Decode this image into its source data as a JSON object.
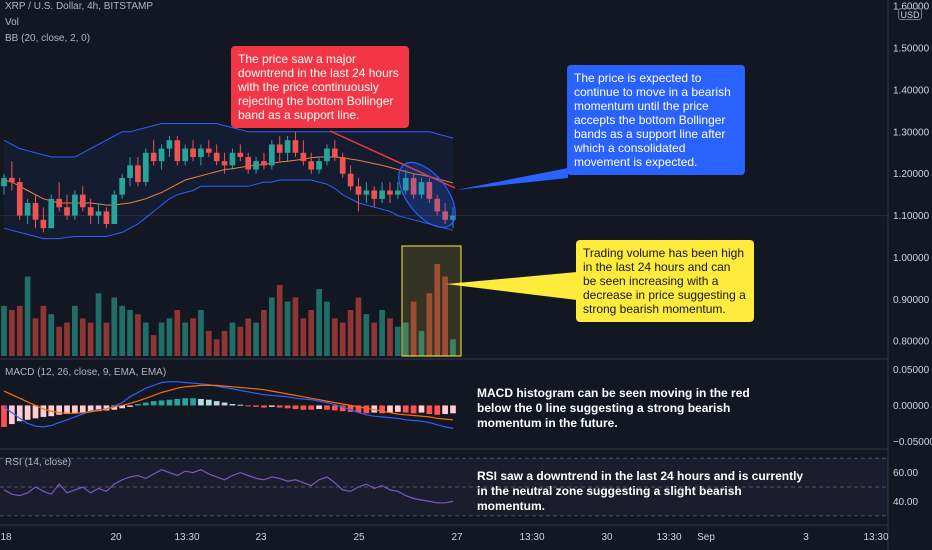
{
  "legend": {
    "symbol": "XRP / U.S. Dollar, 4h, BITSTAMP",
    "volume": "Vol",
    "bollinger": "BB (20, close, 2, 0)",
    "macd": "MACD (12, 26, close, 9, EMA, EMA)",
    "rsi": "RSI (14, close)"
  },
  "currency_badge": "USD",
  "annotations": {
    "downtrend": "The price saw a major downtrend in the last 24 hours with the price continuously rejecting the bottom Bollinger band as a support line.",
    "expectation": "The price is expected to continue to move in a bearish momentum until the price accepts the bottom Bollinger bands as a support line after which a consolidated movement is expected.",
    "volume": "Trading volume has been high in the last 24 hours and can be seen increasing with a decrease in price suggesting a strong bearish momentum.",
    "macd": "MACD histogram can be seen moving in the red below the 0 line suggesting a strong bearish momentum in the future.",
    "rsi": "RSI saw a downtrend in the last 24 hours and is currently in the neutral zone suggesting a slight bearish momentum."
  },
  "colors": {
    "background": "#131722",
    "grid": "#2a2e39",
    "bull": "#26a69a",
    "bear": "#ef5350",
    "vol_bull": "#1f6f68",
    "vol_bear": "#8f3533",
    "bb_band": "#2962ff",
    "bb_basis": "#f57c3a",
    "macd_line": "#2962ff",
    "signal_line": "#ff6d00",
    "rsi_line": "#7e57c2",
    "red_callout": "#f23645",
    "blue_callout": "#2962ff",
    "yellow_callout": "#ffeb3b"
  },
  "chart_data": {
    "type": "candlestick",
    "title": "XRP / U.S. Dollar, 4h, BITSTAMP",
    "x_ticks": [
      "18",
      "20",
      "13:30",
      "23",
      "25",
      "27",
      "13:30",
      "30",
      "13:30",
      "Sep",
      "3",
      "13:30"
    ],
    "price_axis": {
      "ticks": [
        "1.60000",
        "1.50000",
        "1.40000",
        "1.30000",
        "1.20000",
        "1.10000",
        "1.00000",
        "0.90000",
        "0.80000"
      ],
      "ylim": [
        0.76,
        1.61
      ]
    },
    "candles": [
      [
        1.17,
        1.2,
        1.15,
        1.19
      ],
      [
        1.19,
        1.23,
        1.16,
        1.18
      ],
      [
        1.18,
        1.19,
        1.09,
        1.1
      ],
      [
        1.1,
        1.14,
        1.08,
        1.13
      ],
      [
        1.13,
        1.15,
        1.07,
        1.09
      ],
      [
        1.09,
        1.12,
        1.06,
        1.07
      ],
      [
        1.07,
        1.15,
        1.07,
        1.14
      ],
      [
        1.14,
        1.18,
        1.11,
        1.12
      ],
      [
        1.12,
        1.15,
        1.09,
        1.1
      ],
      [
        1.1,
        1.16,
        1.09,
        1.15
      ],
      [
        1.15,
        1.17,
        1.11,
        1.12
      ],
      [
        1.12,
        1.14,
        1.08,
        1.1
      ],
      [
        1.1,
        1.13,
        1.08,
        1.11
      ],
      [
        1.11,
        1.12,
        1.07,
        1.08
      ],
      [
        1.08,
        1.16,
        1.08,
        1.15
      ],
      [
        1.15,
        1.2,
        1.14,
        1.19
      ],
      [
        1.19,
        1.24,
        1.17,
        1.22
      ],
      [
        1.22,
        1.24,
        1.17,
        1.18
      ],
      [
        1.18,
        1.26,
        1.17,
        1.25
      ],
      [
        1.25,
        1.28,
        1.22,
        1.23
      ],
      [
        1.23,
        1.27,
        1.21,
        1.26
      ],
      [
        1.26,
        1.29,
        1.24,
        1.28
      ],
      [
        1.28,
        1.29,
        1.22,
        1.23
      ],
      [
        1.23,
        1.27,
        1.22,
        1.26
      ],
      [
        1.26,
        1.28,
        1.23,
        1.24
      ],
      [
        1.24,
        1.27,
        1.22,
        1.26
      ],
      [
        1.26,
        1.28,
        1.24,
        1.25
      ],
      [
        1.25,
        1.27,
        1.22,
        1.23
      ],
      [
        1.23,
        1.25,
        1.2,
        1.22
      ],
      [
        1.22,
        1.26,
        1.21,
        1.25
      ],
      [
        1.25,
        1.27,
        1.23,
        1.24
      ],
      [
        1.24,
        1.25,
        1.2,
        1.21
      ],
      [
        1.21,
        1.24,
        1.2,
        1.23
      ],
      [
        1.23,
        1.25,
        1.21,
        1.22
      ],
      [
        1.22,
        1.28,
        1.21,
        1.27
      ],
      [
        1.27,
        1.29,
        1.23,
        1.25
      ],
      [
        1.25,
        1.29,
        1.23,
        1.28
      ],
      [
        1.28,
        1.3,
        1.24,
        1.25
      ],
      [
        1.25,
        1.28,
        1.22,
        1.23
      ],
      [
        1.23,
        1.25,
        1.2,
        1.21
      ],
      [
        1.21,
        1.24,
        1.2,
        1.23
      ],
      [
        1.23,
        1.27,
        1.22,
        1.26
      ],
      [
        1.26,
        1.28,
        1.23,
        1.24
      ],
      [
        1.24,
        1.25,
        1.19,
        1.2
      ],
      [
        1.2,
        1.22,
        1.16,
        1.17
      ],
      [
        1.17,
        1.19,
        1.11,
        1.15
      ],
      [
        1.15,
        1.18,
        1.13,
        1.16
      ],
      [
        1.16,
        1.17,
        1.12,
        1.14
      ],
      [
        1.14,
        1.18,
        1.13,
        1.16
      ],
      [
        1.16,
        1.18,
        1.13,
        1.15
      ],
      [
        1.15,
        1.18,
        1.14,
        1.16
      ],
      [
        1.16,
        1.21,
        1.15,
        1.19
      ],
      [
        1.19,
        1.2,
        1.14,
        1.15
      ],
      [
        1.15,
        1.19,
        1.14,
        1.18
      ],
      [
        1.18,
        1.19,
        1.13,
        1.14
      ],
      [
        1.14,
        1.15,
        1.1,
        1.11
      ],
      [
        1.11,
        1.13,
        1.08,
        1.09
      ],
      [
        1.09,
        1.12,
        1.07,
        1.1
      ]
    ],
    "bollinger": {
      "upper": [
        1.28,
        1.27,
        1.26,
        1.255,
        1.25,
        1.245,
        1.24,
        1.24,
        1.24,
        1.24,
        1.25,
        1.26,
        1.27,
        1.28,
        1.29,
        1.3,
        1.3,
        1.305,
        1.31,
        1.315,
        1.32,
        1.32,
        1.32,
        1.32,
        1.32,
        1.32,
        1.32,
        1.32,
        1.315,
        1.31,
        1.305,
        1.3,
        1.3,
        1.3,
        1.3,
        1.3,
        1.3,
        1.3,
        1.3,
        1.3,
        1.3,
        1.3,
        1.3,
        1.3,
        1.3,
        1.3,
        1.3,
        1.3,
        1.3,
        1.3,
        1.3,
        1.3,
        1.3,
        1.3,
        1.3,
        1.295,
        1.29,
        1.285
      ],
      "basis": [
        1.185,
        1.18,
        1.17,
        1.16,
        1.15,
        1.14,
        1.135,
        1.13,
        1.13,
        1.13,
        1.13,
        1.13,
        1.128,
        1.125,
        1.125,
        1.128,
        1.13,
        1.135,
        1.14,
        1.148,
        1.155,
        1.165,
        1.175,
        1.185,
        1.19,
        1.195,
        1.2,
        1.205,
        1.21,
        1.212,
        1.215,
        1.218,
        1.22,
        1.222,
        1.225,
        1.228,
        1.23,
        1.232,
        1.235,
        1.238,
        1.24,
        1.24,
        1.24,
        1.238,
        1.235,
        1.232,
        1.228,
        1.224,
        1.22,
        1.215,
        1.21,
        1.205,
        1.2,
        1.197,
        1.193,
        1.188,
        1.183,
        1.178
      ],
      "lower": [
        1.07,
        1.065,
        1.06,
        1.055,
        1.05,
        1.045,
        1.045,
        1.045,
        1.048,
        1.05,
        1.05,
        1.05,
        1.05,
        1.05,
        1.055,
        1.06,
        1.07,
        1.08,
        1.095,
        1.11,
        1.125,
        1.14,
        1.15,
        1.155,
        1.16,
        1.17,
        1.17,
        1.17,
        1.17,
        1.17,
        1.17,
        1.17,
        1.175,
        1.18,
        1.18,
        1.185,
        1.185,
        1.185,
        1.185,
        1.185,
        1.18,
        1.175,
        1.165,
        1.15,
        1.14,
        1.13,
        1.125,
        1.12,
        1.115,
        1.11,
        1.1,
        1.095,
        1.09,
        1.085,
        1.08,
        1.075,
        1.07,
        1.065
      ]
    },
    "volume": [
      60,
      55,
      60,
      95,
      45,
      60,
      50,
      35,
      40,
      60,
      45,
      40,
      75,
      40,
      70,
      60,
      55,
      50,
      40,
      25,
      40,
      45,
      55,
      40,
      45,
      55,
      30,
      20,
      30,
      40,
      35,
      45,
      40,
      55,
      70,
      85,
      65,
      70,
      45,
      55,
      80,
      65,
      45,
      40,
      55,
      70,
      50,
      40,
      55,
      45,
      35,
      40,
      65,
      30,
      75,
      110,
      95,
      20
    ],
    "macd": {
      "axis_ticks": [
        "0.05000",
        "0.00000",
        "−0.05000"
      ],
      "ylim": [
        -0.058,
        0.062
      ],
      "histogram": [
        -0.03,
        -0.026,
        -0.022,
        -0.02,
        -0.018,
        -0.016,
        -0.015,
        -0.013,
        -0.012,
        -0.011,
        -0.01,
        -0.009,
        -0.008,
        -0.007,
        -0.006,
        -0.004,
        -0.002,
        0.002,
        0.004,
        0.006,
        0.007,
        0.008,
        0.009,
        0.01,
        0.01,
        0.009,
        0.008,
        0.006,
        0.004,
        0.002,
        0.001,
        -0.001,
        -0.002,
        -0.003,
        -0.002,
        -0.003,
        -0.004,
        -0.005,
        -0.006,
        -0.006,
        -0.005,
        -0.006,
        -0.007,
        -0.008,
        -0.009,
        -0.01,
        -0.011,
        -0.01,
        -0.011,
        -0.01,
        -0.009,
        -0.01,
        -0.011,
        -0.01,
        -0.012,
        -0.013,
        -0.012,
        -0.011
      ],
      "macd_line": [
        -0.002,
        -0.01,
        -0.018,
        -0.025,
        -0.029,
        -0.03,
        -0.028,
        -0.024,
        -0.02,
        -0.016,
        -0.012,
        -0.008,
        -0.006,
        -0.005,
        -0.001,
        0.004,
        0.012,
        0.018,
        0.024,
        0.028,
        0.032,
        0.033,
        0.033,
        0.032,
        0.031,
        0.03,
        0.029,
        0.027,
        0.025,
        0.023,
        0.021,
        0.019,
        0.017,
        0.015,
        0.014,
        0.013,
        0.012,
        0.01,
        0.009,
        0.008,
        0.006,
        0.004,
        0.001,
        -0.002,
        -0.006,
        -0.01,
        -0.013,
        -0.015,
        -0.016,
        -0.017,
        -0.018,
        -0.02,
        -0.021,
        -0.022,
        -0.024,
        -0.027,
        -0.03,
        -0.032
      ],
      "signal_line": [
        0.02,
        0.015,
        0.01,
        0.005,
        0.0,
        -0.005,
        -0.008,
        -0.01,
        -0.011,
        -0.011,
        -0.01,
        -0.009,
        -0.007,
        -0.005,
        -0.002,
        0.0,
        0.003,
        0.006,
        0.01,
        0.014,
        0.018,
        0.021,
        0.024,
        0.026,
        0.027,
        0.028,
        0.028,
        0.028,
        0.027,
        0.026,
        0.025,
        0.024,
        0.023,
        0.022,
        0.02,
        0.018,
        0.016,
        0.014,
        0.012,
        0.01,
        0.008,
        0.006,
        0.004,
        0.002,
        0.0,
        -0.002,
        -0.004,
        -0.006,
        -0.008,
        -0.01,
        -0.012,
        -0.013,
        -0.014,
        -0.015,
        -0.016,
        -0.018,
        -0.019,
        -0.02
      ]
    },
    "rsi": {
      "axis_ticks": [
        "60.00",
        "40.00"
      ],
      "ylim": [
        25,
        75
      ],
      "bands": [
        70,
        50,
        30
      ],
      "values": [
        48,
        45,
        44,
        46,
        50,
        47,
        45,
        52,
        46,
        48,
        50,
        46,
        49,
        47,
        52,
        55,
        57,
        58,
        56,
        59,
        62,
        60,
        58,
        61,
        60,
        62,
        59,
        57,
        55,
        58,
        60,
        58,
        56,
        55,
        57,
        56,
        54,
        55,
        53,
        51,
        55,
        57,
        53,
        48,
        47,
        50,
        52,
        49,
        51,
        48,
        47,
        44,
        42,
        41,
        40,
        39,
        39,
        40
      ]
    }
  }
}
